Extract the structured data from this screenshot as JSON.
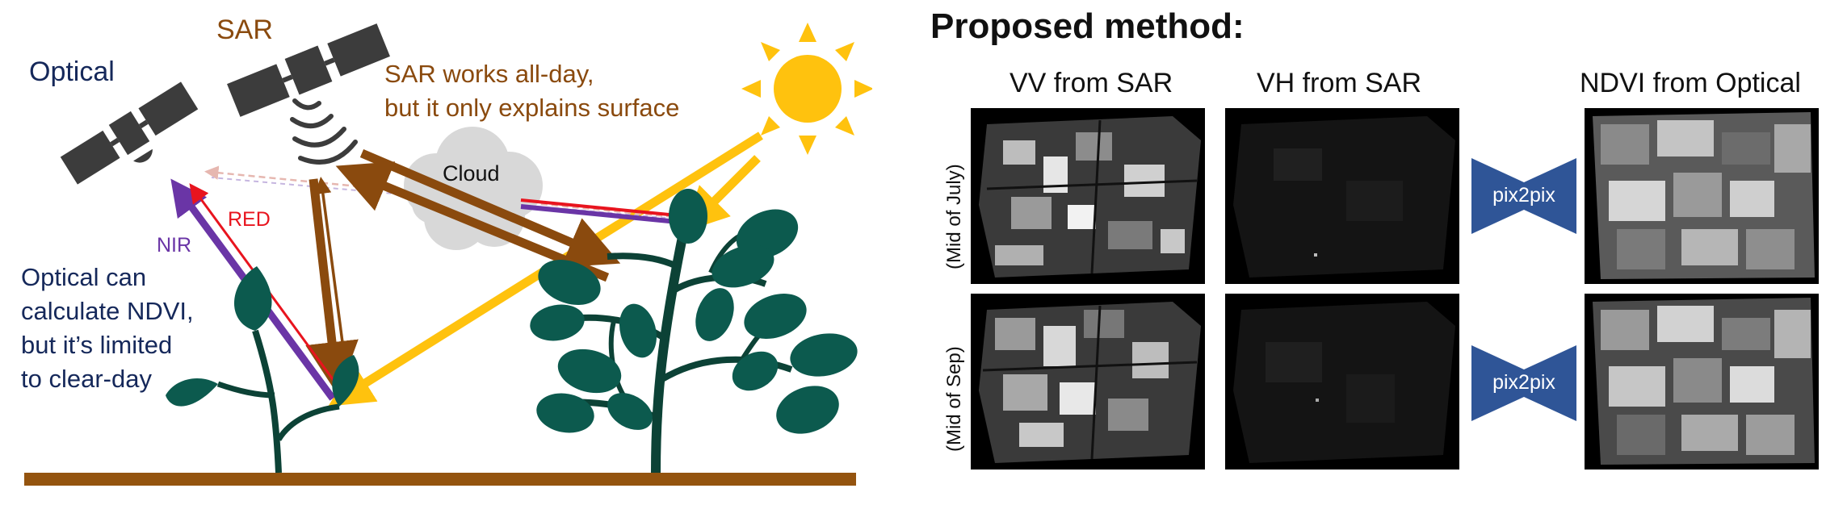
{
  "left_panel": {
    "optical_label": "Optical",
    "sar_label": "SAR",
    "sar_note_line1": "SAR works all-day,",
    "sar_note_line2": "but it only explains surface",
    "cloud_label": "Cloud",
    "red_label": "RED",
    "nir_label": "NIR",
    "optical_note_line1": "Optical can",
    "optical_note_line2": "calculate NDVI,",
    "optical_note_line3": "but it’s limited",
    "optical_note_line4": "to clear-day",
    "colors": {
      "sar": "#8a4a0e",
      "optical": "#15285a",
      "nir": "#6a35a6",
      "red": "#e8141e",
      "sun": "#ffc20e",
      "leaf": "#0c5a4e",
      "ground": "#94540f",
      "satellite": "#3c3c3c"
    }
  },
  "right_panel": {
    "title": "Proposed method:",
    "columns": {
      "vv": "VV from SAR",
      "vh": "VH from SAR",
      "ndvi": "NDVI from Optical"
    },
    "rows": [
      {
        "label": "(Mid of July)",
        "model": "pix2pix"
      },
      {
        "label": "(Mid of Sep)",
        "model": "pix2pix"
      }
    ],
    "colors": {
      "pix2pix": "#2f5597"
    }
  }
}
